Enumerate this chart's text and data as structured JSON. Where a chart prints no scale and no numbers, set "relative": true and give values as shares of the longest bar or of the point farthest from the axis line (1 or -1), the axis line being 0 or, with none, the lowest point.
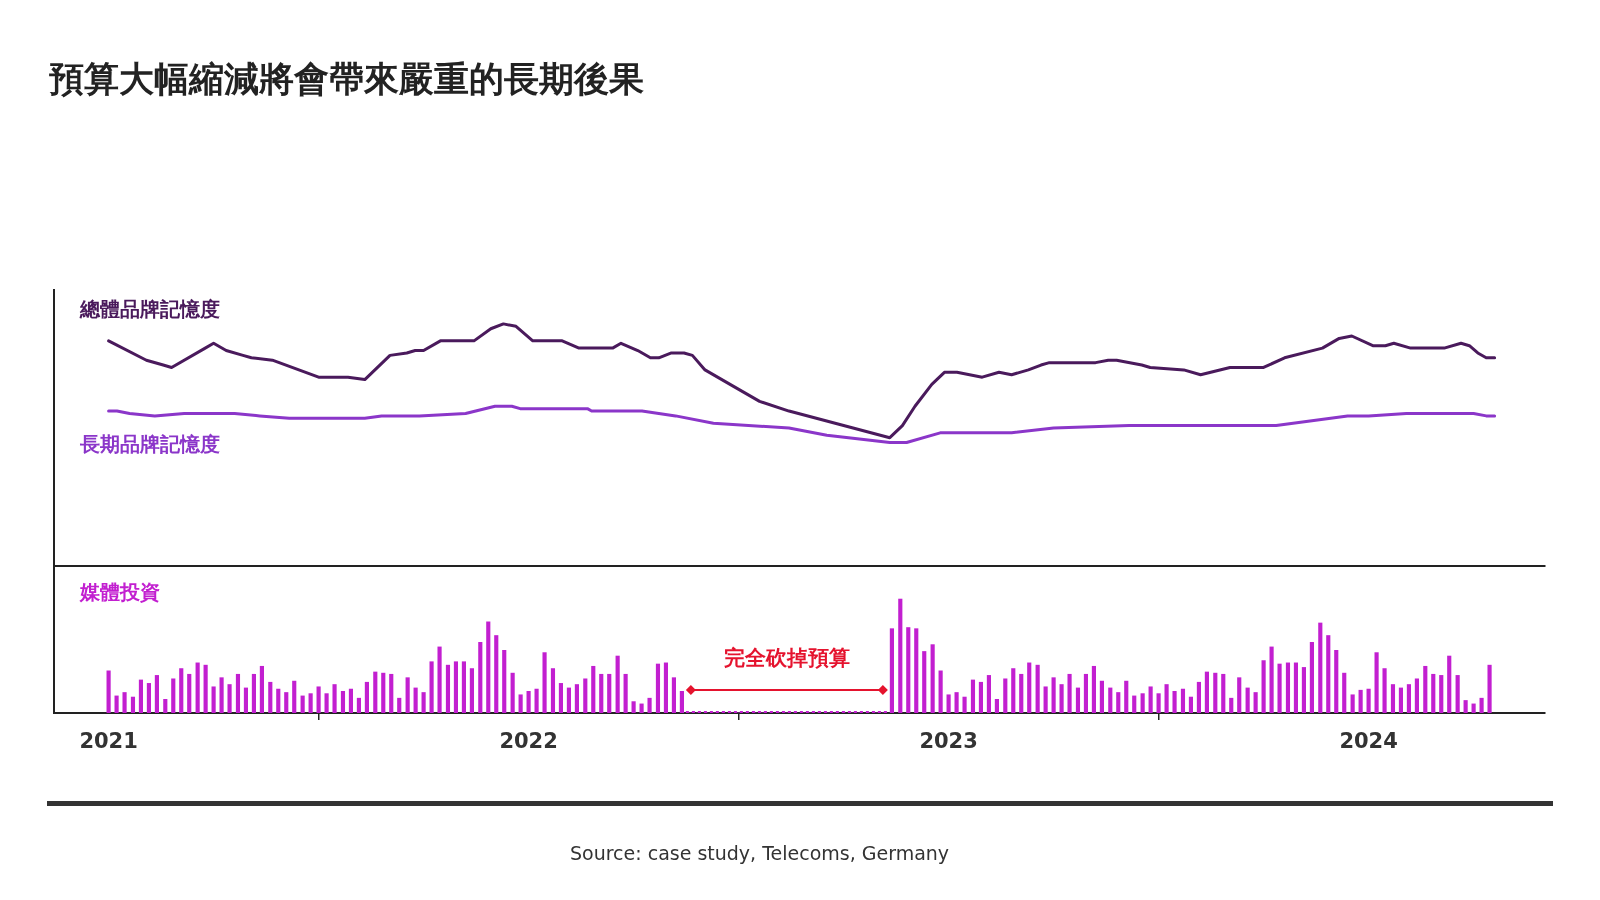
{
  "chart_data": [
    {
      "type": "line",
      "title": "預算大幅縮減將會帶來嚴重的長期後果",
      "relative": true,
      "xlim": [
        2020.87,
        2024.42
      ],
      "xticks": [
        2021,
        2022,
        2023,
        2024
      ],
      "tick_labels": false,
      "series": [
        {
          "name": "總體品牌記憶度",
          "color": "#4a1a5c",
          "x": [
            2021.0,
            2021.09,
            2021.13,
            2021.15,
            2021.23,
            2021.25,
            2021.28,
            2021.32,
            2021.34,
            2021.39,
            2021.5,
            2021.57,
            2021.61,
            2021.67,
            2021.71,
            2021.73,
            2021.75,
            2021.79,
            2021.87,
            2021.91,
            2021.94,
            2021.97,
            2022.01,
            2022.08,
            2022.12,
            2022.2,
            2022.22,
            2022.26,
            2022.29,
            2022.31,
            2022.34,
            2022.37,
            2022.39,
            2022.42,
            2022.49,
            2022.55,
            2022.62,
            2022.86,
            2022.89,
            2022.92,
            2022.96,
            2022.99,
            2023.02,
            2023.05,
            2023.08,
            2023.12,
            2023.15,
            2023.19,
            2023.22,
            2023.24,
            2023.35,
            2023.38,
            2023.4,
            2023.46,
            2023.48,
            2023.56,
            2023.6,
            2023.67,
            2023.71,
            2023.75,
            2023.8,
            2023.89,
            2023.93,
            2023.96,
            2024.01,
            2024.04,
            2024.06,
            2024.1,
            2024.18,
            2024.22,
            2024.24,
            2024.26,
            2024.28,
            2024.3
          ],
          "values": [
            0.93,
            0.85,
            0.83,
            0.82,
            0.9,
            0.92,
            0.89,
            0.87,
            0.86,
            0.85,
            0.78,
            0.78,
            0.77,
            0.87,
            0.88,
            0.89,
            0.89,
            0.93,
            0.93,
            0.98,
            1.0,
            0.99,
            0.93,
            0.93,
            0.9,
            0.9,
            0.92,
            0.89,
            0.86,
            0.86,
            0.88,
            0.88,
            0.87,
            0.81,
            0.74,
            0.68,
            0.64,
            0.53,
            0.58,
            0.66,
            0.75,
            0.8,
            0.8,
            0.79,
            0.78,
            0.8,
            0.79,
            0.81,
            0.83,
            0.84,
            0.84,
            0.85,
            0.85,
            0.83,
            0.82,
            0.81,
            0.79,
            0.82,
            0.82,
            0.82,
            0.86,
            0.9,
            0.94,
            0.95,
            0.91,
            0.91,
            0.92,
            0.9,
            0.9,
            0.92,
            0.91,
            0.88,
            0.86,
            0.86
          ]
        },
        {
          "name": "長期品牌記憶度",
          "color": "#8b36c9",
          "x": [
            2021.0,
            2021.02,
            2021.05,
            2021.11,
            2021.18,
            2021.3,
            2021.36,
            2021.43,
            2021.51,
            2021.61,
            2021.65,
            2021.74,
            2021.85,
            2021.92,
            2021.96,
            2021.98,
            2022.14,
            2022.15,
            2022.27,
            2022.35,
            2022.44,
            2022.62,
            2022.71,
            2022.86,
            2022.9,
            2022.98,
            2023.02,
            2023.15,
            2023.25,
            2023.43,
            2023.61,
            2023.78,
            2023.95,
            2024.0,
            2024.09,
            2024.18,
            2024.25,
            2024.28,
            2024.3
          ],
          "values": [
            0.64,
            0.64,
            0.63,
            0.62,
            0.63,
            0.63,
            0.62,
            0.61,
            0.61,
            0.61,
            0.62,
            0.62,
            0.63,
            0.66,
            0.66,
            0.65,
            0.65,
            0.64,
            0.64,
            0.62,
            0.59,
            0.57,
            0.54,
            0.51,
            0.51,
            0.55,
            0.55,
            0.55,
            0.57,
            0.58,
            0.58,
            0.58,
            0.62,
            0.62,
            0.63,
            0.63,
            0.63,
            0.62,
            0.62
          ]
        }
      ]
    },
    {
      "type": "bar",
      "relative": true,
      "xlim": [
        2020.87,
        2024.42
      ],
      "xticks": [
        2021,
        2022,
        2023,
        2024
      ],
      "tick_labels": "x",
      "series": [
        {
          "name": "媒體投資",
          "color": "#c21fd0",
          "x": [
            2021.0,
            2021.019,
            2021.038,
            2021.058,
            2021.077,
            2021.096,
            2021.115,
            2021.135,
            2021.154,
            2021.173,
            2021.192,
            2021.212,
            2021.231,
            2021.25,
            2021.269,
            2021.288,
            2021.308,
            2021.327,
            2021.346,
            2021.365,
            2021.385,
            2021.404,
            2021.423,
            2021.442,
            2021.462,
            2021.481,
            2021.5,
            2021.519,
            2021.538,
            2021.558,
            2021.577,
            2021.596,
            2021.615,
            2021.635,
            2021.654,
            2021.673,
            2021.692,
            2021.712,
            2021.731,
            2021.75,
            2021.769,
            2021.788,
            2021.808,
            2021.827,
            2021.846,
            2021.865,
            2021.885,
            2021.904,
            2021.923,
            2021.942,
            2021.962,
            2021.981,
            2022.0,
            2022.019,
            2022.038,
            2022.058,
            2022.077,
            2022.096,
            2022.115,
            2022.135,
            2022.154,
            2022.173,
            2022.192,
            2022.212,
            2022.231,
            2022.25,
            2022.269,
            2022.288,
            2022.308,
            2022.327,
            2022.346,
            2022.365,
            2022.385,
            2022.404,
            2022.423,
            2022.442,
            2022.462,
            2022.481,
            2022.5,
            2022.519,
            2022.538,
            2022.558,
            2022.577,
            2022.596,
            2022.615,
            2022.635,
            2022.654,
            2022.673,
            2022.692,
            2022.712,
            2022.731,
            2022.75,
            2022.769,
            2022.788,
            2022.808,
            2022.827,
            2022.846,
            2022.865,
            2022.885,
            2022.904,
            2022.923,
            2022.942,
            2022.962,
            2022.981,
            2023.0,
            2023.019,
            2023.038,
            2023.058,
            2023.077,
            2023.096,
            2023.115,
            2023.135,
            2023.154,
            2023.173,
            2023.192,
            2023.212,
            2023.231,
            2023.25,
            2023.269,
            2023.288,
            2023.308,
            2023.327,
            2023.346,
            2023.365,
            2023.385,
            2023.404,
            2023.423,
            2023.442,
            2023.462,
            2023.481,
            2023.5,
            2023.519,
            2023.538,
            2023.558,
            2023.577,
            2023.596,
            2023.615,
            2023.635,
            2023.654,
            2023.673,
            2023.692,
            2023.712,
            2023.731,
            2023.75,
            2023.769,
            2023.788,
            2023.808,
            2023.827,
            2023.846,
            2023.865,
            2023.885,
            2023.904,
            2023.923,
            2023.942,
            2023.962,
            2023.981,
            2024.0,
            2024.019,
            2024.038,
            2024.058,
            2024.077,
            2024.096,
            2024.115,
            2024.135,
            2024.154,
            2024.173,
            2024.192,
            2024.212,
            2024.231,
            2024.25,
            2024.269,
            2024.288
          ],
          "values": [
            0.37,
            0.15,
            0.18,
            0.14,
            0.29,
            0.26,
            0.33,
            0.12,
            0.3,
            0.39,
            0.34,
            0.44,
            0.42,
            0.23,
            0.31,
            0.25,
            0.34,
            0.22,
            0.34,
            0.41,
            0.27,
            0.21,
            0.18,
            0.28,
            0.15,
            0.17,
            0.23,
            0.17,
            0.25,
            0.19,
            0.21,
            0.13,
            0.27,
            0.36,
            0.35,
            0.34,
            0.13,
            0.31,
            0.22,
            0.18,
            0.45,
            0.58,
            0.42,
            0.45,
            0.45,
            0.39,
            0.62,
            0.8,
            0.68,
            0.55,
            0.35,
            0.16,
            0.19,
            0.21,
            0.53,
            0.39,
            0.26,
            0.22,
            0.25,
            0.3,
            0.41,
            0.34,
            0.34,
            0.5,
            0.34,
            0.1,
            0.08,
            0.13,
            0.43,
            0.44,
            0.31,
            0.19,
            0,
            0,
            0,
            0,
            0,
            0,
            0,
            0,
            0,
            0,
            0,
            0,
            0,
            0,
            0,
            0,
            0,
            0,
            0,
            0,
            0,
            0,
            0,
            0,
            0,
            0.74,
            1.0,
            0.75,
            0.74,
            0.54,
            0.6,
            0.37,
            0.16,
            0.18,
            0.14,
            0.29,
            0.27,
            0.33,
            0.12,
            0.3,
            0.39,
            0.34,
            0.44,
            0.42,
            0.23,
            0.31,
            0.25,
            0.34,
            0.22,
            0.34,
            0.41,
            0.28,
            0.22,
            0.18,
            0.28,
            0.15,
            0.17,
            0.23,
            0.17,
            0.25,
            0.19,
            0.21,
            0.14,
            0.27,
            0.36,
            0.35,
            0.34,
            0.13,
            0.31,
            0.22,
            0.18,
            0.46,
            0.58,
            0.43,
            0.44,
            0.44,
            0.4,
            0.62,
            0.79,
            0.68,
            0.55,
            0.35,
            0.16,
            0.2,
            0.21,
            0.53,
            0.39,
            0.25,
            0.22,
            0.25,
            0.3,
            0.41,
            0.34,
            0.33,
            0.5,
            0.33,
            0.11,
            0.08,
            0.13,
            0.42
          ]
        }
      ],
      "annotations": [
        "完全砍掉預算",
        "Source: case study, Telecoms, Germany"
      ]
    }
  ]
}
